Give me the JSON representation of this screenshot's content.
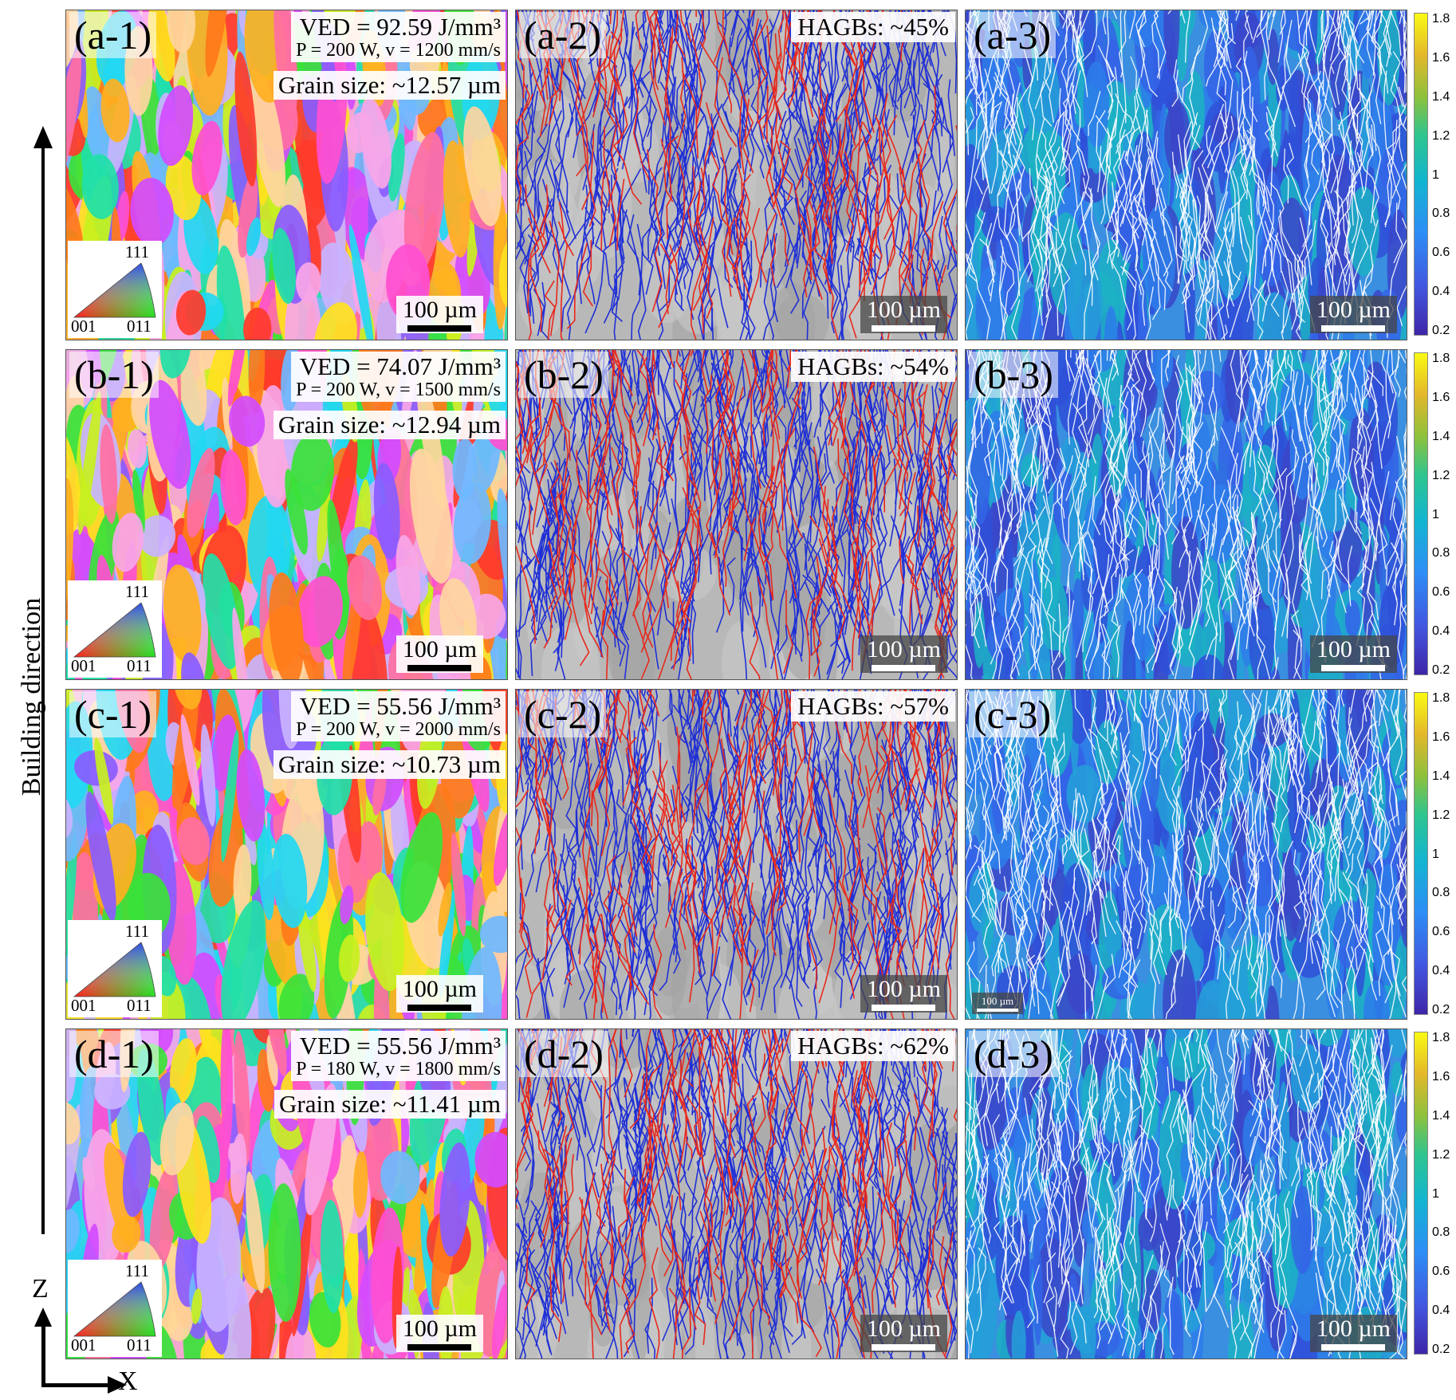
{
  "axis": {
    "building_direction": "Building direction",
    "z_label": "Z",
    "x_label": "X"
  },
  "rows": [
    {
      "panel1_label": "(a-1)",
      "ved": "VED = 92.59 J/mm³",
      "params": "P = 200 W, v = 1200 mm/s",
      "grain_size": "Grain size: ~12.57 µm",
      "panel2_label": "(a-2)",
      "hagb": "HAGBs: ~45%",
      "panel3_label": "(a-3)"
    },
    {
      "panel1_label": "(b-1)",
      "ved": "VED = 74.07 J/mm³",
      "params": "P = 200 W, v = 1500 mm/s",
      "grain_size": "Grain size: ~12.94 µm",
      "panel2_label": "(b-2)",
      "hagb": "HAGBs: ~54%",
      "panel3_label": "(b-3)"
    },
    {
      "panel1_label": "(c-1)",
      "ved": "VED = 55.56 J/mm³",
      "params": "P = 200 W, v = 2000 mm/s",
      "grain_size": "Grain size: ~10.73 µm",
      "panel2_label": "(c-2)",
      "hagb": "HAGBs: ~57%",
      "panel3_label": "(c-3)"
    },
    {
      "panel1_label": "(d-1)",
      "ved": "VED = 55.56 J/mm³",
      "params": "P = 180 W, v = 1800 mm/s",
      "grain_size": "Grain size: ~11.41 µm",
      "panel2_label": "(d-2)",
      "hagb": "HAGBs: ~62%",
      "panel3_label": "(d-3)"
    }
  ],
  "scale_bar": "100 µm",
  "ipf_key": {
    "top": "111",
    "left": "001",
    "right": "011"
  },
  "colorbar": {
    "ticks": [
      "1.8",
      "1.6",
      "1.4",
      "1.2",
      "1",
      "0.8",
      "0.6",
      "0.4",
      "0.2"
    ],
    "colors": [
      "#3e26a8",
      "#4256e0",
      "#2d8ef6",
      "#12b5d0",
      "#2ec58f",
      "#8dc13c",
      "#e3b82a",
      "#f9f914"
    ]
  },
  "colors": {
    "hagb_boundary": "#e8281c",
    "lagb_boundary": "#1f2fd6",
    "kam_boundary": "#ffffff"
  }
}
